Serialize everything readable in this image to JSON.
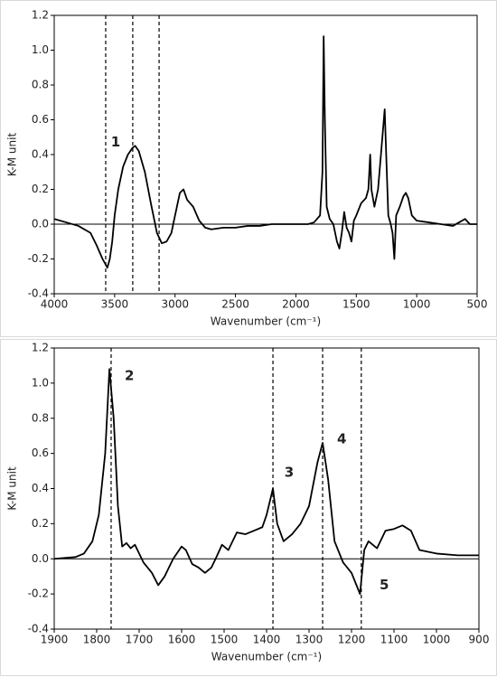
{
  "chart_data": [
    {
      "type": "line",
      "ylabel": "K-M unit",
      "xlabel": "Wavenumber (cm⁻¹)",
      "xlim": [
        4000,
        500
      ],
      "ylim": [
        -0.4,
        1.2
      ],
      "xticks": [
        4000,
        3500,
        3000,
        2500,
        2000,
        1500,
        1000,
        500
      ],
      "yticks": [
        -0.4,
        -0.2,
        {
          "value": 0,
          "label": "0.0"
        },
        0.2,
        0.4,
        0.6,
        0.8,
        {
          "value": 1,
          "label": "1.0"
        },
        1.2
      ],
      "vlines": [
        3574,
        3350,
        3132
      ],
      "annotations": [
        {
          "text": "1",
          "x": 3492,
          "y": 0.47
        }
      ],
      "series": [
        {
          "color": "#000000",
          "x": [
            4000,
            3900,
            3800,
            3700,
            3650,
            3600,
            3560,
            3540,
            3520,
            3500,
            3470,
            3430,
            3390,
            3350,
            3330,
            3300,
            3250,
            3200,
            3150,
            3110,
            3070,
            3030,
            3000,
            2960,
            2930,
            2900,
            2850,
            2800,
            2750,
            2700,
            2600,
            2500,
            2400,
            2300,
            2200,
            2100,
            2000,
            1900,
            1850,
            1800,
            1780,
            1770,
            1760,
            1745,
            1720,
            1690,
            1660,
            1640,
            1620,
            1600,
            1580,
            1560,
            1540,
            1520,
            1500,
            1460,
            1420,
            1400,
            1385,
            1375,
            1350,
            1320,
            1290,
            1265,
            1250,
            1235,
            1215,
            1200,
            1185,
            1170,
            1140,
            1110,
            1090,
            1070,
            1040,
            1000,
            900,
            800,
            700,
            600,
            560,
            500
          ],
          "values": [
            0.03,
            0.01,
            -0.01,
            -0.05,
            -0.12,
            -0.2,
            -0.25,
            -0.2,
            -0.1,
            0.05,
            0.2,
            0.33,
            0.4,
            0.44,
            0.45,
            0.42,
            0.3,
            0.12,
            -0.05,
            -0.11,
            -0.1,
            -0.05,
            0.05,
            0.18,
            0.2,
            0.14,
            0.1,
            0.02,
            -0.02,
            -0.03,
            -0.02,
            -0.02,
            -0.01,
            -0.01,
            0,
            0,
            0,
            0,
            0.01,
            0.05,
            0.3,
            1.08,
            0.6,
            0.1,
            0.03,
            0,
            -0.1,
            -0.14,
            -0.05,
            0.07,
            -0.02,
            -0.05,
            -0.1,
            0.02,
            0.05,
            0.12,
            0.15,
            0.2,
            0.4,
            0.2,
            0.1,
            0.2,
            0.45,
            0.66,
            0.35,
            0.05,
            0,
            -0.05,
            -0.2,
            0.05,
            0.1,
            0.16,
            0.18,
            0.15,
            0.05,
            0.02,
            0.01,
            0,
            -0.01,
            0.03,
            0,
            0
          ]
        }
      ]
    },
    {
      "type": "line",
      "ylabel": "K-M unit",
      "xlabel": "Wavenumber (cm⁻¹)",
      "xlim": [
        1900,
        900
      ],
      "ylim": [
        -0.4,
        1.2
      ],
      "xticks": [
        1900,
        1800,
        1700,
        1600,
        1500,
        1400,
        1300,
        1200,
        1100,
        1000,
        900
      ],
      "yticks": [
        -0.4,
        -0.2,
        {
          "value": 0,
          "label": "0.0"
        },
        0.2,
        0.4,
        0.6,
        0.8,
        {
          "value": 1,
          "label": "1.0"
        },
        1.2
      ],
      "vlines": [
        1766,
        1385,
        1268,
        1177
      ],
      "annotations": [
        {
          "text": "2",
          "x": 1723,
          "y": 1.04
        },
        {
          "text": "3",
          "x": 1347,
          "y": 0.49
        },
        {
          "text": "4",
          "x": 1223,
          "y": 0.68
        },
        {
          "text": "5",
          "x": 1123,
          "y": -0.15
        }
      ],
      "series": [
        {
          "color": "#000000",
          "x": [
            1900,
            1850,
            1830,
            1810,
            1795,
            1780,
            1770,
            1760,
            1750,
            1740,
            1730,
            1720,
            1710,
            1700,
            1690,
            1670,
            1655,
            1640,
            1620,
            1600,
            1590,
            1575,
            1560,
            1545,
            1530,
            1520,
            1505,
            1490,
            1470,
            1450,
            1430,
            1410,
            1400,
            1385,
            1375,
            1360,
            1340,
            1320,
            1300,
            1280,
            1268,
            1255,
            1240,
            1220,
            1200,
            1180,
            1170,
            1160,
            1140,
            1120,
            1100,
            1080,
            1060,
            1040,
            1000,
            950,
            900
          ],
          "values": [
            0,
            0.01,
            0.03,
            0.1,
            0.25,
            0.6,
            1.08,
            0.8,
            0.3,
            0.07,
            0.09,
            0.06,
            0.08,
            0.03,
            -0.02,
            -0.08,
            -0.15,
            -0.1,
            0,
            0.07,
            0.05,
            -0.03,
            -0.05,
            -0.08,
            -0.05,
            0,
            0.08,
            0.05,
            0.15,
            0.14,
            0.16,
            0.18,
            0.25,
            0.4,
            0.2,
            0.1,
            0.14,
            0.2,
            0.3,
            0.55,
            0.66,
            0.45,
            0.1,
            -0.02,
            -0.08,
            -0.2,
            0.05,
            0.1,
            0.06,
            0.16,
            0.17,
            0.19,
            0.16,
            0.05,
            0.03,
            0.02,
            0.02
          ]
        }
      ]
    }
  ]
}
